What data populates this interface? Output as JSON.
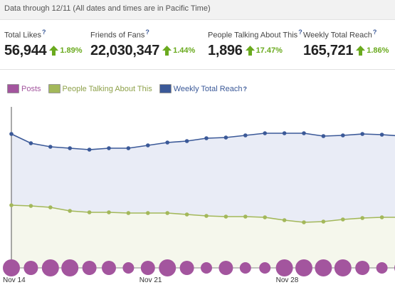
{
  "header": {
    "text": "Data through 12/11 (All dates and times are in Pacific Time)"
  },
  "stats": [
    {
      "label": "Total Likes",
      "value": "56,944",
      "change": "1.89%"
    },
    {
      "label": "Friends of Fans",
      "value": "22,030,347",
      "change": "1.44%"
    },
    {
      "label": "People Talking About This",
      "value": "1,896",
      "change": "17.47%"
    },
    {
      "label": "Weekly Total Reach",
      "value": "165,721",
      "change": "1.86%"
    }
  ],
  "help_mark": "?",
  "colors": {
    "posts": "#a3559e",
    "talking": "#a3b85a",
    "talking_fill": "#f5f7ec",
    "reach": "#3b5998",
    "reach_fill": "#e9ecf6",
    "positive": "#6aaa1e"
  },
  "legend": [
    {
      "label": "Posts",
      "color_key": "posts"
    },
    {
      "label": "People Talking About This",
      "color_key": "talking"
    },
    {
      "label": "Weekly Total Reach",
      "color_key": "reach"
    }
  ],
  "chart_data": {
    "type": "line",
    "x_ticks": [
      "Nov 14",
      "Nov 21",
      "Nov 28"
    ],
    "x_tick_index": [
      0,
      7,
      14
    ],
    "n_points": 21,
    "series": [
      {
        "name": "Weekly Total Reach",
        "values": [
          188,
          201,
          206,
          208,
          210,
          208,
          208,
          204,
          200,
          198,
          194,
          193,
          190,
          187,
          187,
          187,
          191,
          190,
          188,
          189,
          191
        ]
      },
      {
        "name": "People Talking About This",
        "values": [
          288,
          289,
          291,
          296,
          298,
          298,
          299,
          299,
          299,
          301,
          303,
          304,
          304,
          305,
          309,
          312,
          311,
          308,
          306,
          305,
          305
        ]
      },
      {
        "name": "Posts",
        "values": [
          2,
          1,
          2,
          2,
          1,
          1,
          0,
          1,
          2,
          1,
          0,
          1,
          0,
          0,
          2,
          2,
          2,
          2,
          1,
          0,
          1
        ]
      }
    ],
    "grid": false,
    "legend_position": "top-left"
  }
}
